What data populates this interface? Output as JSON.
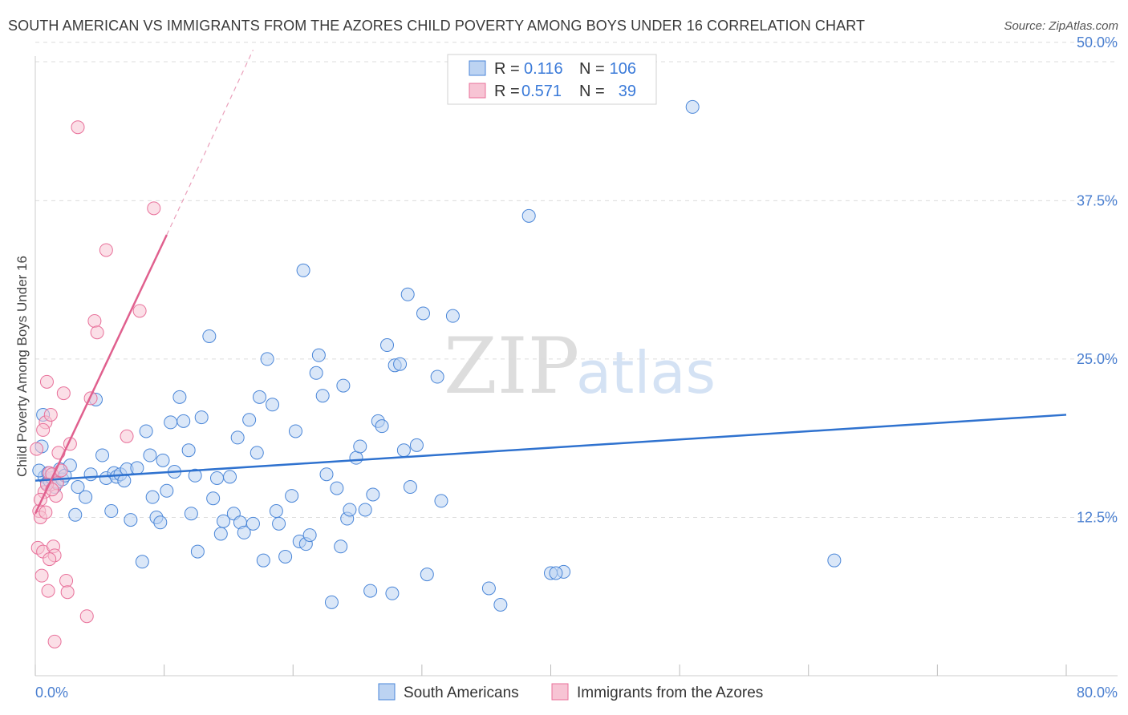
{
  "header": {
    "title": "SOUTH AMERICAN VS IMMIGRANTS FROM THE AZORES CHILD POVERTY AMONG BOYS UNDER 16 CORRELATION CHART",
    "source": "Source: ZipAtlas.com"
  },
  "watermark": {
    "zip": "ZIP",
    "atlas": "atlas"
  },
  "legend": {
    "rows": [
      {
        "r_label": "R =",
        "r_value": "0.116",
        "n_label": "N =",
        "n_value": "106"
      },
      {
        "r_label": "R =",
        "r_value": "0.571",
        "n_label": "N =",
        "n_value": "39"
      }
    ]
  },
  "bottom_legend": {
    "series1": "South Americans",
    "series2": "Immigrants from the Azores"
  },
  "colors": {
    "blue": "#4a86d8",
    "blue_fill": "#bcd3f2",
    "pink": "#e8709a",
    "pink_fill": "#f7c4d4"
  },
  "chart_data": {
    "type": "scatter",
    "title": "SOUTH AMERICAN VS IMMIGRANTS FROM THE AZORES CHILD POVERTY AMONG BOYS UNDER 16 CORRELATION CHART",
    "xlabel": "",
    "ylabel": "Child Poverty Among Boys Under 16",
    "xlim": [
      0,
      80
    ],
    "ylim": [
      0,
      51
    ],
    "x_tick_labels": [
      "0.0%",
      "80.0%"
    ],
    "y_ticks": [
      {
        "value": 12.5,
        "label": "12.5%"
      },
      {
        "value": 25.0,
        "label": "25.0%"
      },
      {
        "value": 37.5,
        "label": "37.5%"
      },
      {
        "value": 50.0,
        "label": "50.0%"
      }
    ],
    "series": [
      {
        "name": "South Americans",
        "R": 0.116,
        "N": 106,
        "trend": {
          "x": [
            0,
            80
          ],
          "y": [
            15.4,
            20.6
          ]
        },
        "points": [
          [
            0.5,
            18.1
          ],
          [
            0.6,
            20.6
          ],
          [
            0.7,
            15.7
          ],
          [
            0.9,
            15.2
          ],
          [
            1.1,
            15.4
          ],
          [
            1.3,
            15.6
          ],
          [
            1.5,
            14.9
          ],
          [
            1.7,
            15.3
          ],
          [
            1.9,
            16.3
          ],
          [
            2.1,
            15.5
          ],
          [
            2.3,
            15.8
          ],
          [
            2.7,
            16.6
          ],
          [
            3.1,
            12.7
          ],
          [
            3.3,
            14.9
          ],
          [
            3.9,
            14.1
          ],
          [
            4.3,
            15.9
          ],
          [
            4.7,
            21.8
          ],
          [
            5.2,
            17.4
          ],
          [
            5.5,
            15.6
          ],
          [
            5.9,
            13.0
          ],
          [
            6.1,
            16.0
          ],
          [
            6.3,
            15.7
          ],
          [
            6.6,
            15.9
          ],
          [
            6.9,
            15.4
          ],
          [
            7.1,
            16.3
          ],
          [
            7.4,
            12.3
          ],
          [
            7.9,
            16.4
          ],
          [
            8.3,
            9.0
          ],
          [
            8.6,
            19.3
          ],
          [
            8.9,
            17.4
          ],
          [
            9.1,
            14.1
          ],
          [
            9.4,
            12.5
          ],
          [
            9.7,
            12.1
          ],
          [
            9.9,
            17.0
          ],
          [
            10.2,
            14.6
          ],
          [
            10.5,
            20.0
          ],
          [
            10.8,
            16.1
          ],
          [
            11.2,
            22.0
          ],
          [
            11.5,
            20.1
          ],
          [
            11.9,
            17.8
          ],
          [
            12.1,
            12.8
          ],
          [
            12.4,
            15.8
          ],
          [
            12.6,
            9.8
          ],
          [
            12.9,
            20.4
          ],
          [
            13.5,
            26.8
          ],
          [
            13.8,
            14.0
          ],
          [
            14.1,
            15.6
          ],
          [
            14.4,
            11.2
          ],
          [
            14.6,
            12.2
          ],
          [
            15.1,
            15.7
          ],
          [
            15.4,
            12.8
          ],
          [
            15.7,
            18.8
          ],
          [
            15.9,
            12.1
          ],
          [
            16.2,
            11.3
          ],
          [
            16.6,
            20.2
          ],
          [
            16.9,
            12.0
          ],
          [
            17.2,
            17.6
          ],
          [
            17.4,
            22.0
          ],
          [
            17.7,
            9.1
          ],
          [
            18.0,
            25.0
          ],
          [
            18.4,
            21.4
          ],
          [
            18.7,
            13.0
          ],
          [
            18.9,
            12.0
          ],
          [
            19.4,
            9.4
          ],
          [
            19.9,
            14.2
          ],
          [
            20.2,
            19.3
          ],
          [
            20.5,
            10.6
          ],
          [
            20.8,
            32.0
          ],
          [
            21.0,
            10.4
          ],
          [
            21.3,
            11.1
          ],
          [
            21.8,
            23.9
          ],
          [
            22.0,
            25.3
          ],
          [
            22.3,
            22.1
          ],
          [
            22.6,
            15.9
          ],
          [
            23.0,
            5.8
          ],
          [
            23.4,
            14.8
          ],
          [
            23.7,
            10.2
          ],
          [
            23.9,
            22.9
          ],
          [
            24.2,
            12.4
          ],
          [
            24.4,
            13.1
          ],
          [
            24.9,
            17.2
          ],
          [
            25.2,
            18.1
          ],
          [
            25.6,
            13.1
          ],
          [
            26.0,
            6.7
          ],
          [
            26.2,
            14.3
          ],
          [
            26.6,
            20.1
          ],
          [
            26.9,
            19.7
          ],
          [
            27.3,
            26.1
          ],
          [
            27.7,
            6.5
          ],
          [
            27.9,
            24.5
          ],
          [
            28.3,
            24.6
          ],
          [
            28.6,
            17.8
          ],
          [
            28.9,
            30.1
          ],
          [
            29.1,
            14.9
          ],
          [
            29.6,
            18.2
          ],
          [
            30.1,
            28.6
          ],
          [
            30.4,
            8.0
          ],
          [
            31.2,
            23.6
          ],
          [
            31.5,
            13.8
          ],
          [
            32.4,
            28.4
          ],
          [
            35.2,
            6.9
          ],
          [
            36.1,
            5.6
          ],
          [
            38.3,
            36.3
          ],
          [
            40.0,
            8.1
          ],
          [
            41.0,
            8.2
          ],
          [
            51.0,
            44.9
          ],
          [
            62.0,
            9.1
          ],
          [
            40.4,
            8.1
          ],
          [
            0.3,
            16.2
          ],
          [
            1.0,
            16.0
          ]
        ]
      },
      {
        "name": "Immigrants from the Azores",
        "R": 0.571,
        "N": 39,
        "trend": {
          "x": [
            0,
            10.2
          ],
          "y": [
            12.8,
            34.8
          ]
        },
        "trend_dashed": {
          "x": [
            10.2,
            16.9
          ],
          "y": [
            34.8,
            49.4
          ]
        },
        "points": [
          [
            0.1,
            17.9
          ],
          [
            0.2,
            10.1
          ],
          [
            0.3,
            13.0
          ],
          [
            0.4,
            12.5
          ],
          [
            0.5,
            7.9
          ],
          [
            0.6,
            9.8
          ],
          [
            0.7,
            14.5
          ],
          [
            0.8,
            20.0
          ],
          [
            0.9,
            23.2
          ],
          [
            1.0,
            6.7
          ],
          [
            1.1,
            16.0
          ],
          [
            1.2,
            20.6
          ],
          [
            1.3,
            15.9
          ],
          [
            1.4,
            10.2
          ],
          [
            1.5,
            9.5
          ],
          [
            1.6,
            14.2
          ],
          [
            1.7,
            15.2
          ],
          [
            1.8,
            17.6
          ],
          [
            2.0,
            16.2
          ],
          [
            2.2,
            22.3
          ],
          [
            2.4,
            7.5
          ],
          [
            2.5,
            6.6
          ],
          [
            2.7,
            18.3
          ],
          [
            3.3,
            43.3
          ],
          [
            4.0,
            4.7
          ],
          [
            4.3,
            21.9
          ],
          [
            4.6,
            28.0
          ],
          [
            4.8,
            27.1
          ],
          [
            5.5,
            33.6
          ],
          [
            7.1,
            18.9
          ],
          [
            8.1,
            28.8
          ],
          [
            9.2,
            36.9
          ],
          [
            1.5,
            2.7
          ],
          [
            0.6,
            19.4
          ],
          [
            0.9,
            15.1
          ],
          [
            1.3,
            14.7
          ],
          [
            0.4,
            13.9
          ],
          [
            1.1,
            9.2
          ],
          [
            0.8,
            12.9
          ]
        ]
      }
    ]
  }
}
